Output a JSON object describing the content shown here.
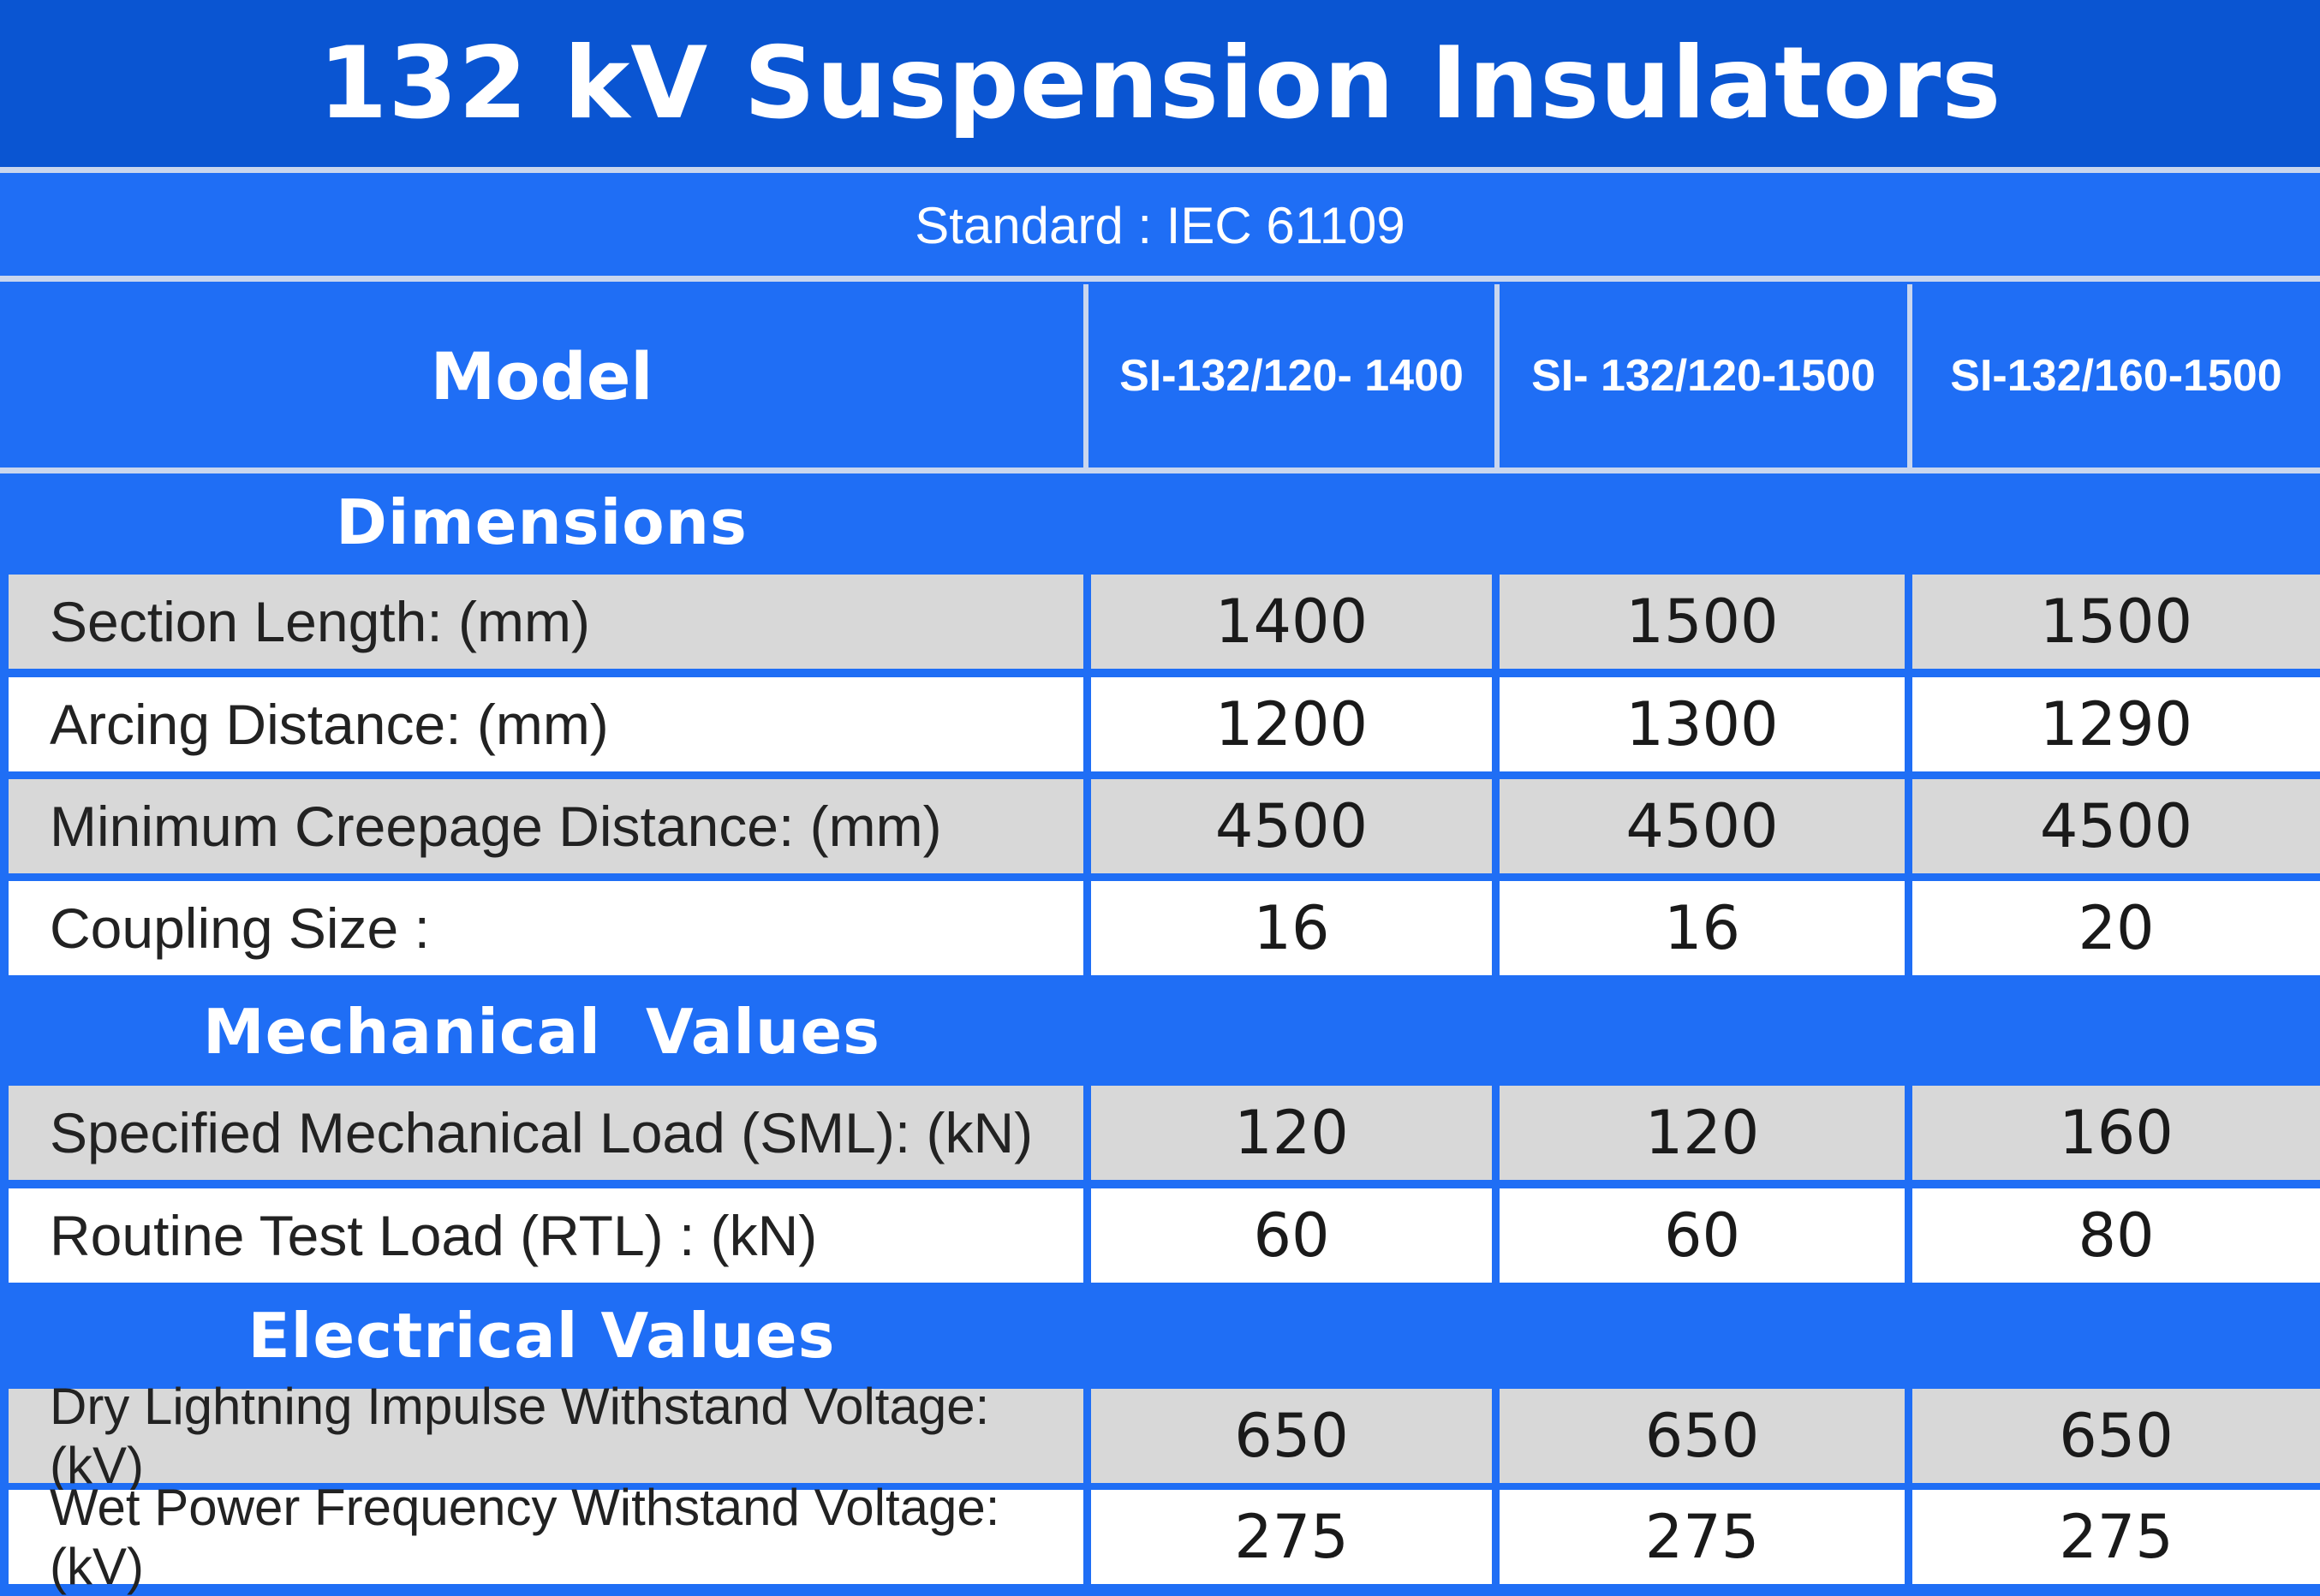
{
  "title": "132 kV Suspension Insulators",
  "standard": "Standard : IEC 61109",
  "header": {
    "model_label": "Model",
    "models": [
      "SI-132/120- 1400",
      "SI- 132/120-1500",
      "SI-132/160-1500"
    ]
  },
  "sections": [
    {
      "heading": "Dimensions",
      "rows": [
        {
          "label": "Section Length: (mm)",
          "values": [
            "1400",
            "1500",
            "1500"
          ]
        },
        {
          "label": "Arcing Distance: (mm)",
          "values": [
            "1200",
            "1300",
            "1290"
          ]
        },
        {
          "label": "Minimum Creepage Distance: (mm)",
          "values": [
            "4500",
            "4500",
            "4500"
          ]
        },
        {
          "label": "Coupling Size :",
          "values": [
            "16",
            "16",
            "20"
          ]
        }
      ]
    },
    {
      "heading": "Mechanical  Values",
      "rows": [
        {
          "label": "Specified Mechanical Load (SML): (kN)",
          "values": [
            "120",
            "120",
            "160"
          ]
        },
        {
          "label": "Routine Test Load (RTL) : (kN)",
          "values": [
            "60",
            "60",
            "80"
          ]
        }
      ]
    },
    {
      "heading": "Electrical Values",
      "rows": [
        {
          "label": "Dry Lightning Impulse Withstand Voltage:(kV)",
          "values": [
            "650",
            "650",
            "650"
          ]
        },
        {
          "label": "Wet Power Frequency Withstand Voltage:(kV)",
          "values": [
            "275",
            "275",
            "275"
          ]
        }
      ]
    }
  ],
  "colors": {
    "title_band": "#0a55d2",
    "table_blue": "#1f6ef5",
    "row_grey": "#d8d8d8",
    "row_white": "#ffffff"
  }
}
